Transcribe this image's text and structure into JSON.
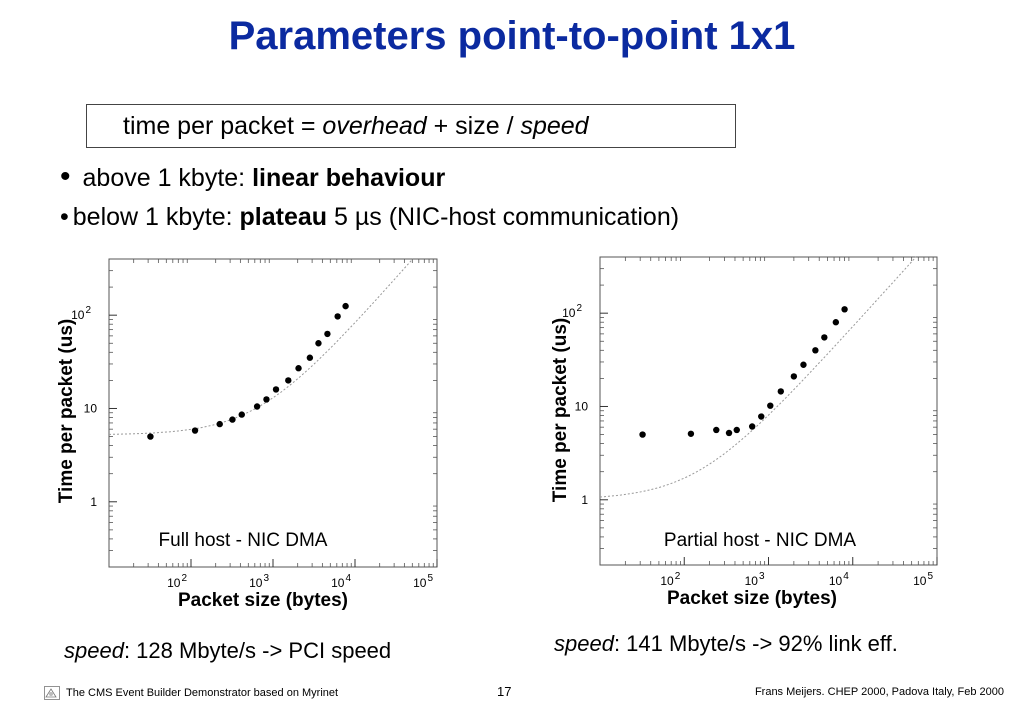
{
  "slide": {
    "title": "Parameters point-to-point 1x1",
    "formula": {
      "lhs": "time per packet",
      "eq": " = ",
      "overhead": "overhead",
      "plus": " + size / ",
      "speed": "speed"
    },
    "bullets": [
      {
        "marker": "•",
        "text": "above 1 kbyte: ",
        "bold": "linear behaviour",
        "rest": ""
      },
      {
        "marker": "•",
        "text": "below 1 kbyte: ",
        "bold": "plateau",
        "rest": " 5 µs (NIC-host communication)"
      }
    ],
    "speed_notes": [
      {
        "label": "speed",
        "text": ": 128 Mbyte/s -> PCI speed"
      },
      {
        "label": "speed",
        "text": ": 141 Mbyte/s -> 92% link eff."
      }
    ],
    "footer": {
      "left": "The CMS Event Builder Demonstrator based on Myrinet",
      "page": "17",
      "right": "Frans Meijers.  CHEP 2000, Padova Italy, Feb 2000"
    },
    "colors": {
      "title": "#0b2aa0",
      "points": "#000000",
      "fit": "#999999"
    }
  },
  "chart_data": [
    {
      "type": "scatter",
      "caption": "Full host - NIC DMA",
      "xlabel": "Packet size (bytes)",
      "ylabel": "Time per packet (us)",
      "xscale": "log",
      "yscale": "log",
      "xlim": [
        10,
        100000
      ],
      "ylim": [
        0.2,
        400
      ],
      "xticks": [
        {
          "value": 100,
          "base": "10",
          "exp": "2"
        },
        {
          "value": 1000,
          "base": "10",
          "exp": "3"
        },
        {
          "value": 10000,
          "base": "10",
          "exp": "4"
        },
        {
          "value": 100000,
          "base": "10",
          "exp": "5"
        }
      ],
      "yticks": [
        {
          "value": 1,
          "base": "1",
          "exp": ""
        },
        {
          "value": 10,
          "base": "10",
          "exp": ""
        },
        {
          "value": 100,
          "base": "10",
          "exp": "2"
        }
      ],
      "fit": {
        "overhead_us": 5.2,
        "speed_mbyte_s": 128
      },
      "x": [
        32,
        112,
        224,
        320,
        416,
        640,
        832,
        1088,
        1536,
        2048,
        2816,
        3584,
        4608,
        6144,
        7680
      ],
      "y": [
        5.0,
        5.8,
        6.8,
        7.6,
        8.6,
        10.5,
        12.5,
        16.0,
        20,
        27,
        35,
        50,
        63,
        97,
        125
      ]
    },
    {
      "type": "scatter",
      "caption": "Partial host - NIC DMA",
      "xlabel": "Packet size (bytes)",
      "ylabel": "Time per packet (us)",
      "xscale": "log",
      "yscale": "log",
      "xlim": [
        10,
        100000
      ],
      "ylim": [
        0.2,
        400
      ],
      "xticks": [
        {
          "value": 100,
          "base": "10",
          "exp": "2"
        },
        {
          "value": 1000,
          "base": "10",
          "exp": "3"
        },
        {
          "value": 10000,
          "base": "10",
          "exp": "4"
        },
        {
          "value": 100000,
          "base": "10",
          "exp": "5"
        }
      ],
      "yticks": [
        {
          "value": 1,
          "base": "1",
          "exp": ""
        },
        {
          "value": 10,
          "base": "10",
          "exp": ""
        },
        {
          "value": 100,
          "base": "10",
          "exp": "2"
        }
      ],
      "fit": {
        "overhead_us": 1.0,
        "speed_mbyte_s": 141
      },
      "x": [
        32,
        120,
        240,
        340,
        420,
        640,
        820,
        1050,
        1400,
        2000,
        2600,
        3600,
        4600,
        6300,
        8000
      ],
      "y": [
        5.0,
        5.1,
        5.6,
        5.2,
        5.6,
        6.1,
        7.8,
        10.2,
        14.5,
        21,
        28,
        40,
        55,
        80,
        110
      ]
    }
  ]
}
